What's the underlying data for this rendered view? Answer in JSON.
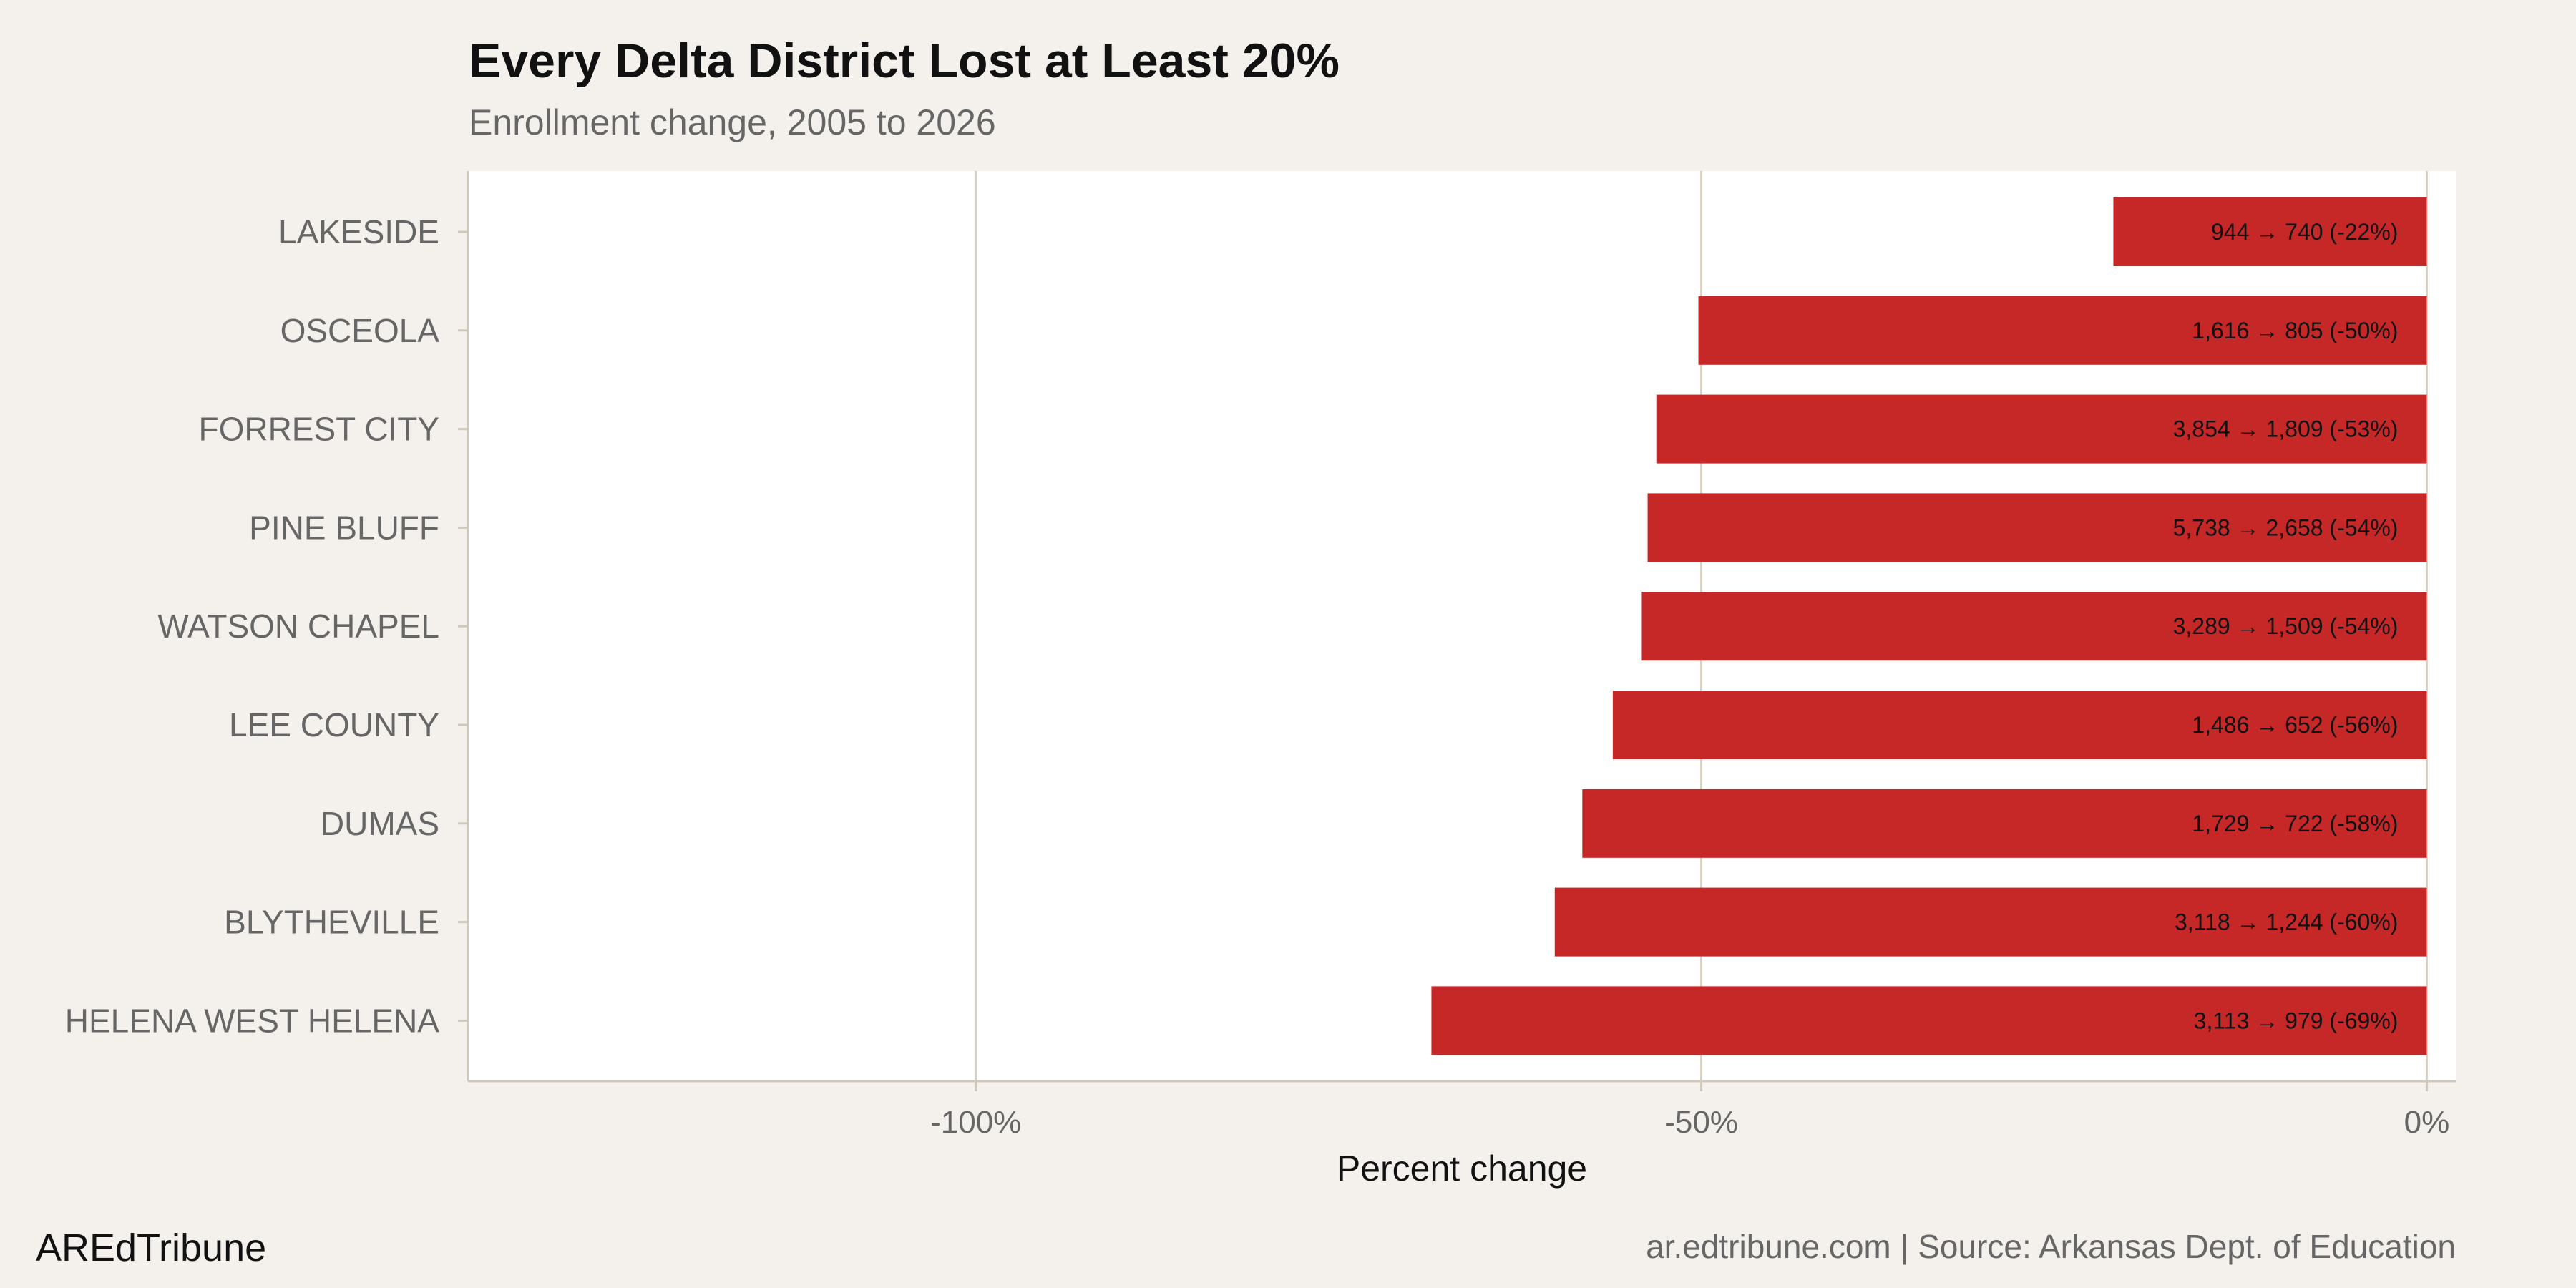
{
  "chart_data": {
    "type": "bar",
    "orientation": "horizontal",
    "title": "Every Delta District Lost at Least 20%",
    "subtitle": "Enrollment change, 2005 to 2026",
    "xlabel": "Percent change",
    "ylabel": "",
    "xlim": [
      -135,
      2
    ],
    "xticks": [
      -100,
      -50,
      0
    ],
    "xtick_labels": [
      "-100%",
      "-50%",
      "0%"
    ],
    "grid": "vertical major",
    "bar_color": "#c62828",
    "categories": [
      "LAKESIDE",
      "OSCEOLA",
      "FORREST CITY",
      "PINE BLUFF",
      "WATSON CHAPEL",
      "LEE COUNTY",
      "DUMAS",
      "BLYTHEVILLE",
      "HELENA WEST HELENA"
    ],
    "values": [
      -21.6,
      -50.2,
      -53.1,
      -53.7,
      -54.1,
      -56.1,
      -58.2,
      -60.1,
      -68.6
    ],
    "data_labels": [
      "944 → 740 (-22%)",
      "1,616 → 805 (-50%)",
      "3,854 → 1,809 (-53%)",
      "5,738 → 2,658 (-54%)",
      "3,289 → 1,509 (-54%)",
      "1,486 → 652 (-56%)",
      "1,729 → 722 (-58%)",
      "3,118 → 1,244 (-60%)",
      "3,113 → 979 (-69%)"
    ]
  },
  "footer": {
    "brand": "AREdTribune",
    "source": "ar.edtribune.com | Source: Arkansas Dept. of Education"
  }
}
